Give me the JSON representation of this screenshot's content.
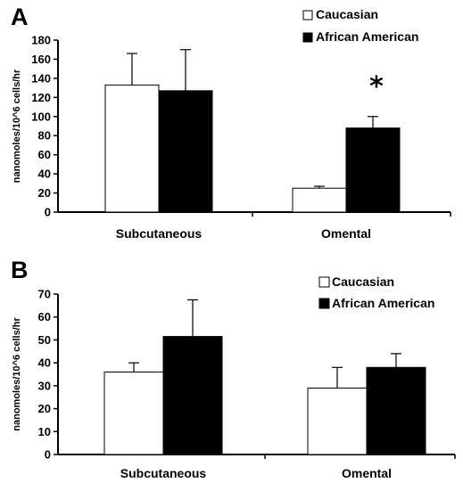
{
  "colors": {
    "caucasian": "#ffffff",
    "african_american": "#000000",
    "axis": "#000000"
  },
  "chart_data": [
    {
      "type": "bar",
      "panel_label": "A",
      "categories": [
        "Subcutaneous",
        "Omental"
      ],
      "ylabel": "nanomoles/10^6 cells/hr",
      "ylim": [
        0,
        180
      ],
      "yticks": [
        "0",
        "20",
        "40",
        "60",
        "80",
        "100",
        "120",
        "140",
        "160",
        "180"
      ],
      "legend": {
        "position": "top-right"
      },
      "series": [
        {
          "name": "Caucasian",
          "color": "#ffffff",
          "values": [
            133,
            25
          ],
          "errors": [
            33,
            2
          ]
        },
        {
          "name": "African American",
          "color": "#000000",
          "values": [
            127,
            88
          ],
          "errors": [
            43,
            12
          ]
        }
      ],
      "annotations": [
        {
          "text": "*",
          "category": "Omental",
          "series": "African American"
        }
      ]
    },
    {
      "type": "bar",
      "panel_label": "B",
      "categories": [
        "Subcutaneous",
        "Omental"
      ],
      "ylabel": "nanomoles/10^6 cells/hr",
      "ylim": [
        0,
        70
      ],
      "yticks": [
        "0",
        "10",
        "20",
        "30",
        "40",
        "50",
        "60",
        "70"
      ],
      "legend": {
        "position": "top-right"
      },
      "series": [
        {
          "name": "Caucasian",
          "color": "#ffffff",
          "values": [
            36,
            29
          ],
          "errors": [
            4,
            9
          ]
        },
        {
          "name": "African American",
          "color": "#000000",
          "values": [
            51.5,
            38
          ],
          "errors": [
            16,
            6
          ]
        }
      ],
      "annotations": []
    }
  ]
}
